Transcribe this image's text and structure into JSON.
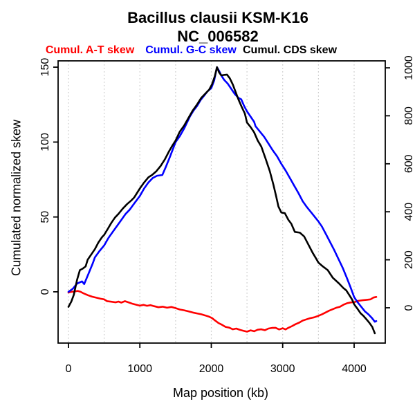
{
  "colors": {
    "background": "#ffffff",
    "axis": "#000000",
    "grid": "#cccccc",
    "at_skew": "#ff0000",
    "gc_skew": "#0000ff",
    "cds_skew": "#000000"
  },
  "chart_data": {
    "type": "line",
    "title": "Bacillus clausii KSM-K16",
    "subtitle": "NC_006582",
    "xlabel": "Map position (kb)",
    "ylabel_left": "Cumulated normalized skew",
    "x_unit": "kb",
    "grid": "vertical dotted, every 500 kb",
    "legend_position": "top",
    "xlim": [
      -145,
      4436
    ],
    "ylim_left": [
      -34.2,
      154.2
    ],
    "ylim_right": [
      -147,
      1029
    ],
    "x_ticks": [
      0,
      1000,
      2000,
      3000,
      4000
    ],
    "y_ticks_left": [
      0,
      50,
      100,
      150
    ],
    "y_ticks_right": [
      0,
      200,
      400,
      600,
      800,
      1000
    ],
    "gridlines_x": [
      0,
      500,
      1000,
      1500,
      2000,
      2500,
      3000,
      3500,
      4000
    ],
    "series": [
      {
        "key": "at",
        "name": "Cumul. A-T skew",
        "color": "#ff0000",
        "axis": "left",
        "points": [
          [
            0,
            -0.5
          ],
          [
            40,
            0
          ],
          [
            90,
            0.3
          ],
          [
            130,
            0.6
          ],
          [
            170,
            0
          ],
          [
            210,
            -1
          ],
          [
            270,
            -2.2
          ],
          [
            330,
            -3.2
          ],
          [
            400,
            -4
          ],
          [
            450,
            -4.6
          ],
          [
            500,
            -5
          ],
          [
            540,
            -6.2
          ],
          [
            600,
            -6.6
          ],
          [
            660,
            -7
          ],
          [
            700,
            -6.5
          ],
          [
            740,
            -7.2
          ],
          [
            790,
            -6.2
          ],
          [
            840,
            -7
          ],
          [
            900,
            -8
          ],
          [
            950,
            -8.6
          ],
          [
            1000,
            -9.2
          ],
          [
            1050,
            -8.7
          ],
          [
            1100,
            -9.3
          ],
          [
            1150,
            -8.9
          ],
          [
            1200,
            -9.6
          ],
          [
            1260,
            -10.3
          ],
          [
            1320,
            -9.9
          ],
          [
            1380,
            -10.6
          ],
          [
            1440,
            -10.1
          ],
          [
            1500,
            -10.9
          ],
          [
            1560,
            -11.8
          ],
          [
            1620,
            -12.3
          ],
          [
            1680,
            -13
          ],
          [
            1740,
            -13.8
          ],
          [
            1800,
            -14.4
          ],
          [
            1860,
            -15
          ],
          [
            1920,
            -15.8
          ],
          [
            1970,
            -16.6
          ],
          [
            2010,
            -17.5
          ],
          [
            2050,
            -19
          ],
          [
            2100,
            -20.8
          ],
          [
            2150,
            -22
          ],
          [
            2200,
            -23.4
          ],
          [
            2250,
            -23.9
          ],
          [
            2300,
            -25
          ],
          [
            2350,
            -24.5
          ],
          [
            2400,
            -25.4
          ],
          [
            2450,
            -26
          ],
          [
            2500,
            -26.6
          ],
          [
            2550,
            -25.7
          ],
          [
            2600,
            -26.3
          ],
          [
            2650,
            -25.3
          ],
          [
            2700,
            -25
          ],
          [
            2750,
            -25.6
          ],
          [
            2800,
            -24.5
          ],
          [
            2850,
            -24.1
          ],
          [
            2900,
            -24
          ],
          [
            2950,
            -25.1
          ],
          [
            3000,
            -24.3
          ],
          [
            3040,
            -25.1
          ],
          [
            3080,
            -24
          ],
          [
            3130,
            -22.9
          ],
          [
            3180,
            -21.6
          ],
          [
            3230,
            -20.6
          ],
          [
            3280,
            -19.2
          ],
          [
            3330,
            -18.4
          ],
          [
            3380,
            -17.6
          ],
          [
            3440,
            -17
          ],
          [
            3500,
            -16
          ],
          [
            3550,
            -15
          ],
          [
            3600,
            -13.8
          ],
          [
            3650,
            -12.6
          ],
          [
            3700,
            -11.6
          ],
          [
            3750,
            -10.6
          ],
          [
            3800,
            -10
          ],
          [
            3850,
            -8.6
          ],
          [
            3900,
            -7.6
          ],
          [
            3950,
            -7.1
          ],
          [
            4000,
            -6.9
          ],
          [
            4060,
            -6
          ],
          [
            4120,
            -5.6
          ],
          [
            4180,
            -5.3
          ],
          [
            4230,
            -5
          ],
          [
            4270,
            -3.8
          ],
          [
            4310,
            -3.4
          ]
        ]
      },
      {
        "key": "gc",
        "name": "Cumul. G-C skew",
        "color": "#0000ff",
        "axis": "left",
        "points": [
          [
            0,
            0
          ],
          [
            60,
            2
          ],
          [
            120,
            5.5
          ],
          [
            190,
            7
          ],
          [
            220,
            5.2
          ],
          [
            280,
            12
          ],
          [
            340,
            19
          ],
          [
            370,
            23
          ],
          [
            430,
            27
          ],
          [
            500,
            31
          ],
          [
            560,
            36
          ],
          [
            620,
            40
          ],
          [
            680,
            44
          ],
          [
            740,
            48
          ],
          [
            800,
            52
          ],
          [
            860,
            55
          ],
          [
            920,
            59
          ],
          [
            1000,
            64
          ],
          [
            1060,
            69
          ],
          [
            1120,
            73
          ],
          [
            1180,
            76
          ],
          [
            1240,
            77.5
          ],
          [
            1315,
            78
          ],
          [
            1360,
            83
          ],
          [
            1420,
            90
          ],
          [
            1500,
            100
          ],
          [
            1560,
            104
          ],
          [
            1620,
            109
          ],
          [
            1700,
            117
          ],
          [
            1750,
            121
          ],
          [
            1800,
            124
          ],
          [
            1850,
            128
          ],
          [
            1900,
            131
          ],
          [
            1950,
            134
          ],
          [
            2000,
            136
          ],
          [
            2040,
            141
          ],
          [
            2080,
            150
          ],
          [
            2110,
            147.5
          ],
          [
            2140,
            144.5
          ],
          [
            2180,
            141.5
          ],
          [
            2230,
            139
          ],
          [
            2280,
            135.5
          ],
          [
            2330,
            132
          ],
          [
            2380,
            129.5
          ],
          [
            2420,
            128.5
          ],
          [
            2460,
            124
          ],
          [
            2500,
            120.5
          ],
          [
            2550,
            117
          ],
          [
            2600,
            113.5
          ],
          [
            2620,
            110.5
          ],
          [
            2680,
            107
          ],
          [
            2740,
            103.5
          ],
          [
            2800,
            99
          ],
          [
            2860,
            94.5
          ],
          [
            2920,
            90.5
          ],
          [
            2980,
            85.5
          ],
          [
            3040,
            81
          ],
          [
            3100,
            76
          ],
          [
            3160,
            71
          ],
          [
            3220,
            66
          ],
          [
            3280,
            60.5
          ],
          [
            3340,
            56.5
          ],
          [
            3400,
            53
          ],
          [
            3450,
            50
          ],
          [
            3500,
            47
          ],
          [
            3550,
            43.5
          ],
          [
            3600,
            39
          ],
          [
            3660,
            33.5
          ],
          [
            3720,
            28
          ],
          [
            3780,
            22
          ],
          [
            3840,
            16
          ],
          [
            3900,
            9
          ],
          [
            3950,
            3
          ],
          [
            4000,
            -3.5
          ],
          [
            4050,
            -7
          ],
          [
            4100,
            -10
          ],
          [
            4150,
            -13
          ],
          [
            4200,
            -15
          ],
          [
            4250,
            -17.5
          ],
          [
            4290,
            -20
          ],
          [
            4310,
            -19.5
          ]
        ]
      },
      {
        "key": "cds",
        "name": "Cumul. CDS skew",
        "color": "#000000",
        "axis": "left",
        "points": [
          [
            0,
            -10
          ],
          [
            40,
            -6.5
          ],
          [
            75,
            -2
          ],
          [
            120,
            8
          ],
          [
            160,
            14.5
          ],
          [
            200,
            15.5
          ],
          [
            240,
            17
          ],
          [
            270,
            21.5
          ],
          [
            320,
            25
          ],
          [
            370,
            28.5
          ],
          [
            420,
            33
          ],
          [
            470,
            36.5
          ],
          [
            500,
            38
          ],
          [
            550,
            42
          ],
          [
            600,
            46
          ],
          [
            650,
            49.5
          ],
          [
            700,
            52
          ],
          [
            760,
            55.5
          ],
          [
            820,
            58.5
          ],
          [
            880,
            61
          ],
          [
            920,
            63
          ],
          [
            960,
            66
          ],
          [
            1000,
            69
          ],
          [
            1060,
            73
          ],
          [
            1120,
            76.5
          ],
          [
            1170,
            78
          ],
          [
            1230,
            80.5
          ],
          [
            1290,
            84
          ],
          [
            1350,
            88.5
          ],
          [
            1410,
            94
          ],
          [
            1460,
            98
          ],
          [
            1500,
            101
          ],
          [
            1560,
            107
          ],
          [
            1620,
            111
          ],
          [
            1680,
            116
          ],
          [
            1740,
            121
          ],
          [
            1800,
            125
          ],
          [
            1860,
            129.5
          ],
          [
            1920,
            132.5
          ],
          [
            1970,
            135
          ],
          [
            2010,
            138.5
          ],
          [
            2050,
            144
          ],
          [
            2080,
            150
          ],
          [
            2110,
            146.5
          ],
          [
            2140,
            144.5
          ],
          [
            2180,
            144.8
          ],
          [
            2220,
            145
          ],
          [
            2260,
            142.5
          ],
          [
            2300,
            138.5
          ],
          [
            2340,
            133.5
          ],
          [
            2380,
            128.5
          ],
          [
            2430,
            123
          ],
          [
            2470,
            119
          ],
          [
            2500,
            113
          ],
          [
            2550,
            110
          ],
          [
            2600,
            106.5
          ],
          [
            2650,
            101
          ],
          [
            2700,
            97
          ],
          [
            2760,
            89
          ],
          [
            2820,
            80.5
          ],
          [
            2870,
            71.5
          ],
          [
            2910,
            63.5
          ],
          [
            2940,
            57
          ],
          [
            2980,
            53
          ],
          [
            3030,
            52.5
          ],
          [
            3080,
            48
          ],
          [
            3120,
            45.5
          ],
          [
            3170,
            40
          ],
          [
            3240,
            39.5
          ],
          [
            3300,
            37
          ],
          [
            3360,
            31.5
          ],
          [
            3420,
            26
          ],
          [
            3470,
            22
          ],
          [
            3500,
            19.5
          ],
          [
            3560,
            17
          ],
          [
            3630,
            14.5
          ],
          [
            3700,
            9.5
          ],
          [
            3790,
            5.5
          ],
          [
            3850,
            2.5
          ],
          [
            3890,
            1
          ],
          [
            3930,
            -2
          ],
          [
            3970,
            -5
          ],
          [
            4000,
            -8.3
          ],
          [
            4050,
            -11.5
          ],
          [
            4090,
            -14.3
          ],
          [
            4130,
            -16
          ],
          [
            4175,
            -18.5
          ],
          [
            4210,
            -20.5
          ],
          [
            4255,
            -23.5
          ],
          [
            4290,
            -27.7
          ]
        ]
      }
    ]
  }
}
